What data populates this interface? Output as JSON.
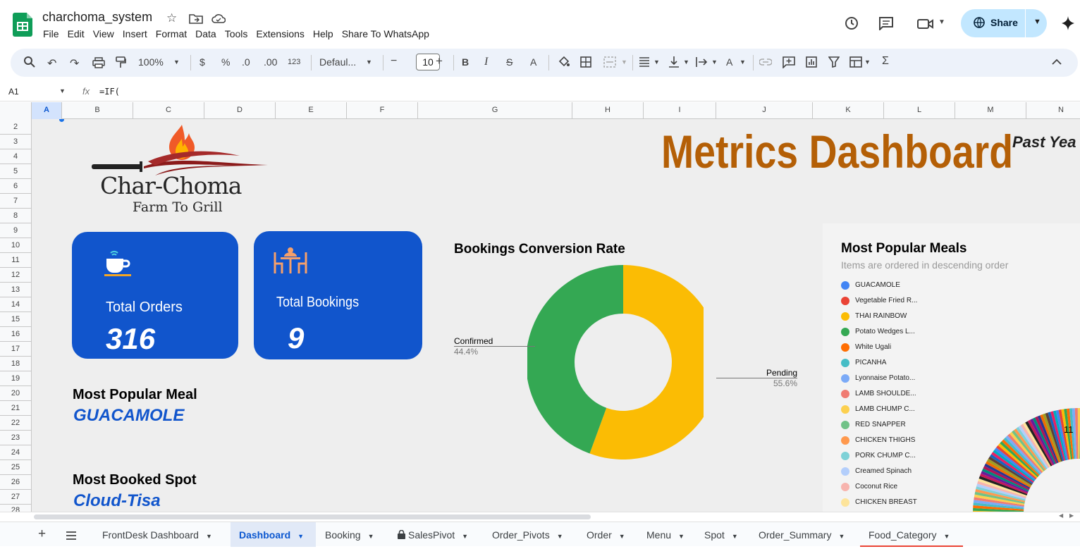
{
  "app": {
    "doc_title": "charchoma_system"
  },
  "menu": [
    "File",
    "Edit",
    "View",
    "Insert",
    "Format",
    "Data",
    "Tools",
    "Extensions",
    "Help",
    "Share To WhatsApp"
  ],
  "share_label": "Share",
  "toolbar": {
    "zoom": "100%",
    "currency": "$",
    "percent": "%",
    "decrease_decimal": ".0",
    "increase_decimal": ".00",
    "number_format": "123",
    "font": "Defaul...",
    "font_size": "10",
    "minus": "−",
    "plus": "+",
    "bold": "B",
    "italic": "I",
    "strike": "S",
    "text_color": "A",
    "sum": "Σ"
  },
  "formula": {
    "cell": "A1",
    "fx": "fx",
    "value": "=IF("
  },
  "columns": [
    "A",
    "B",
    "C",
    "D",
    "E",
    "F",
    "G",
    "H",
    "I",
    "J",
    "K",
    "L",
    "M",
    "N"
  ],
  "rows": [
    "2",
    "3",
    "4",
    "5",
    "6",
    "7",
    "8",
    "9",
    "10",
    "11",
    "12",
    "13",
    "14",
    "15",
    "16",
    "17",
    "18",
    "19",
    "20",
    "21",
    "22",
    "23",
    "24",
    "25",
    "26",
    "27",
    "28"
  ],
  "dashboard": {
    "brand": {
      "name": "Char-Choma",
      "tagline": "Farm To Grill"
    },
    "title": "Metrics Dashboard",
    "period": "Past Yea",
    "orders": {
      "label": "Total Orders",
      "value": "316"
    },
    "bookings": {
      "label": "Total Bookings",
      "value": "9"
    },
    "popular_meal": {
      "label": "Most Popular Meal",
      "value": "GUACAMOLE"
    },
    "booked_spot": {
      "label": "Most Booked Spot",
      "value": "Cloud-Tisa"
    }
  },
  "chart_data": [
    {
      "type": "pie",
      "title": "Bookings Conversion Rate",
      "donut": true,
      "slices": [
        {
          "label": "Pending",
          "value": 55.6,
          "pct_label": "55.6%",
          "color": "#fbbc04"
        },
        {
          "label": "Confirmed",
          "value": 44.4,
          "pct_label": "44.4%",
          "color": "#34a853"
        }
      ]
    },
    {
      "type": "pie",
      "title": "Most Popular Meals",
      "subtitle": "Items are ordered in descending order",
      "donut": true,
      "visible_value_label": "11",
      "legend": [
        {
          "label": "GUACAMOLE",
          "color": "#4285f4"
        },
        {
          "label": "Vegetable Fried R...",
          "color": "#ea4335"
        },
        {
          "label": "THAI RAINBOW",
          "color": "#fbbc04"
        },
        {
          "label": "Potato Wedges L...",
          "color": "#34a853"
        },
        {
          "label": "White Ugali",
          "color": "#ff6d01"
        },
        {
          "label": "PICANHA",
          "color": "#46bdc6"
        },
        {
          "label": "Lyonnaise Potato...",
          "color": "#7baaf7"
        },
        {
          "label": "LAMB SHOULDE...",
          "color": "#f07b72"
        },
        {
          "label": "LAMB CHUMP C...",
          "color": "#fcd04f"
        },
        {
          "label": "RED SNAPPER",
          "color": "#71c287"
        },
        {
          "label": "CHICKEN THIGHS",
          "color": "#ff994d"
        },
        {
          "label": "PORK CHUMP C...",
          "color": "#7ed1d7"
        },
        {
          "label": "Creamed Spinach",
          "color": "#b3cefb"
        },
        {
          "label": "Coconut Rice",
          "color": "#f7b4ae"
        },
        {
          "label": "CHICKEN BREAST",
          "color": "#fde49b"
        }
      ]
    }
  ],
  "sheet_tabs": [
    {
      "label": "FrontDesk Dashboard"
    },
    {
      "label": "Dashboard",
      "active": true
    },
    {
      "label": "Booking"
    },
    {
      "label": "SalesPivot",
      "locked": true
    },
    {
      "label": "Order_Pivots"
    },
    {
      "label": "Order"
    },
    {
      "label": "Menu"
    },
    {
      "label": "Spot"
    },
    {
      "label": "Order_Summary"
    },
    {
      "label": "Food_Category"
    }
  ]
}
